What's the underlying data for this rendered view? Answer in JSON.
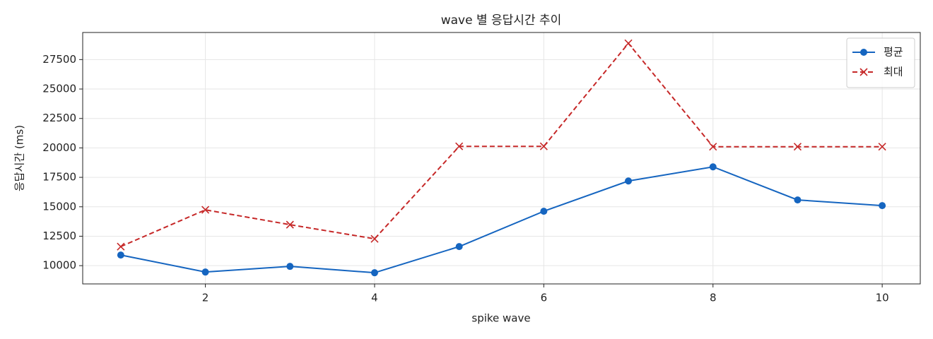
{
  "chart_data": {
    "type": "line",
    "title": "wave 별 응답시간 추이",
    "x_label": "spike wave",
    "y_label": "응답시간 (ms)",
    "x": [
      1,
      2,
      3,
      4,
      5,
      6,
      7,
      8,
      9,
      10
    ],
    "series": [
      {
        "name": "평균",
        "color": "#1565c0",
        "marker": "o",
        "dash": "solid",
        "values": [
          10900,
          9460,
          9940,
          9400,
          11620,
          14620,
          17190,
          18390,
          15580,
          15100
        ]
      },
      {
        "name": "최대",
        "color": "#c62828",
        "marker": "x",
        "dash": "dashed",
        "values": [
          11620,
          14740,
          13480,
          12280,
          20130,
          20130,
          28880,
          20100,
          20100,
          20100
        ]
      }
    ],
    "xlim": [
      0.55,
      10.45
    ],
    "xticks": [
      2,
      4,
      6,
      8,
      10
    ],
    "ylim": [
      8450,
      29800
    ],
    "yticks": [
      10000,
      12500,
      15000,
      17500,
      20000,
      22500,
      25000,
      27500
    ],
    "grid": true,
    "legend": "upper right"
  }
}
